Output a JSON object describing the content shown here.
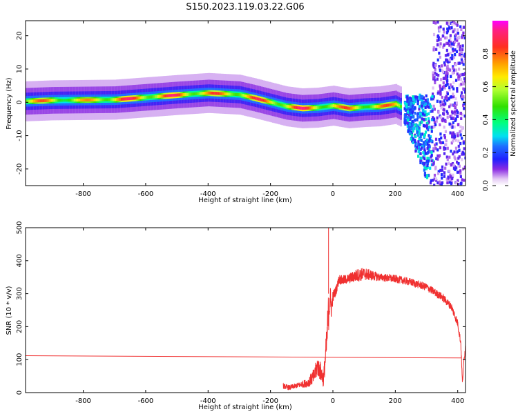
{
  "title": "S150.2023.119.03.22.G06",
  "colors": {
    "snr_line": "#f03030",
    "background": "#ffffff"
  },
  "chart_data": [
    {
      "type": "heatmap",
      "title": "S150.2023.119.03.22.G06",
      "xlabel": "Height of straight line (km)",
      "ylabel": "Frequency (Hz)",
      "xlim": [
        -985,
        425
      ],
      "ylim": [
        -25,
        24.5
      ],
      "x_ticks": [
        "-800",
        "-600",
        "-400",
        "-200",
        "0",
        "200",
        "400"
      ],
      "x_tick_values": [
        -800,
        -600,
        -400,
        -200,
        0,
        200,
        400
      ],
      "y_ticks": [
        "20",
        "10",
        "0",
        "-10",
        "-20"
      ],
      "y_tick_values": [
        20,
        10,
        0,
        -10,
        -20
      ],
      "grid": false,
      "colorbar": {
        "label": "Normalized spectral amplitude",
        "ticks": [
          "0.0",
          "0.2",
          "0.4",
          "0.6",
          "0.8"
        ],
        "tick_values": [
          0,
          0.2,
          0.4,
          0.6,
          0.8
        ],
        "range": [
          0,
          1
        ],
        "colormap": "gist_ncar-like (white → purple → blue → cyan → green → yellow → orange → red → magenta)"
      },
      "ridge": {
        "description": "Dominant frequency ridge (amplitude peak) vs height",
        "x": [
          -985,
          -900,
          -800,
          -700,
          -600,
          -500,
          -400,
          -300,
          -250,
          -200,
          -150,
          -100,
          -50,
          0,
          50,
          100,
          150,
          200,
          220
        ],
        "y": [
          0.3,
          0.6,
          0.7,
          0.8,
          1.5,
          2.2,
          2.8,
          2.3,
          1.2,
          0,
          -1.2,
          -1.8,
          -1.6,
          -1.0,
          -1.8,
          -1.4,
          -1.2,
          -0.5,
          -1.5
        ],
        "peak_amplitude": [
          0.85,
          0.8,
          0.75,
          0.95,
          0.9,
          0.95,
          0.85,
          0.9,
          0.9,
          0.9,
          0.9,
          0.95,
          0.9,
          0.8,
          0.85,
          0.85,
          0.85,
          0.8,
          0.7
        ]
      },
      "scatter_region": {
        "description": "Broadband scattered amplitude above ~230 km",
        "x_range": [
          230,
          425
        ],
        "y_range": [
          -25,
          24.5
        ]
      }
    },
    {
      "type": "line",
      "xlabel": "Height of straight line (km)",
      "ylabel": "SNR (10 * v/v)",
      "xlim": [
        -985,
        425
      ],
      "ylim": [
        0,
        500
      ],
      "x_ticks": [
        "-800",
        "-600",
        "-400",
        "-200",
        "0",
        "200",
        "400"
      ],
      "x_tick_values": [
        -800,
        -600,
        -400,
        -200,
        0,
        200,
        400
      ],
      "y_ticks": [
        "0",
        "100",
        "200",
        "300",
        "400",
        "500"
      ],
      "y_tick_values": [
        0,
        100,
        200,
        300,
        400,
        500
      ],
      "grid": false,
      "series": [
        {
          "color": "#f03030",
          "x": [
            -985,
            412
          ],
          "y": [
            112,
            105
          ]
        },
        {
          "color": "#f03030",
          "x": [
            -160,
            -140,
            -120,
            -100,
            -80,
            -60,
            -50,
            -40,
            -30,
            -20,
            -15,
            -10,
            -5,
            0,
            10,
            20,
            30,
            50,
            75,
            100,
            150,
            200,
            250,
            300,
            350,
            380,
            400,
            410,
            415,
            420,
            425
          ],
          "y": [
            20,
            15,
            20,
            25,
            30,
            50,
            80,
            65,
            40,
            150,
            230,
            290,
            255,
            290,
            310,
            345,
            340,
            345,
            355,
            360,
            350,
            345,
            335,
            320,
            290,
            260,
            210,
            150,
            30,
            100,
            140
          ],
          "noise_amplitude": [
            8,
            8,
            8,
            10,
            14,
            25,
            30,
            30,
            25,
            50,
            60,
            60,
            30,
            20,
            15,
            15,
            15,
            15,
            20,
            20,
            12,
            12,
            12,
            12,
            12,
            12,
            12,
            12,
            10,
            10,
            10
          ]
        }
      ],
      "annotations": [
        {
          "text": "spike",
          "x": -14,
          "y": 500
        }
      ]
    }
  ]
}
